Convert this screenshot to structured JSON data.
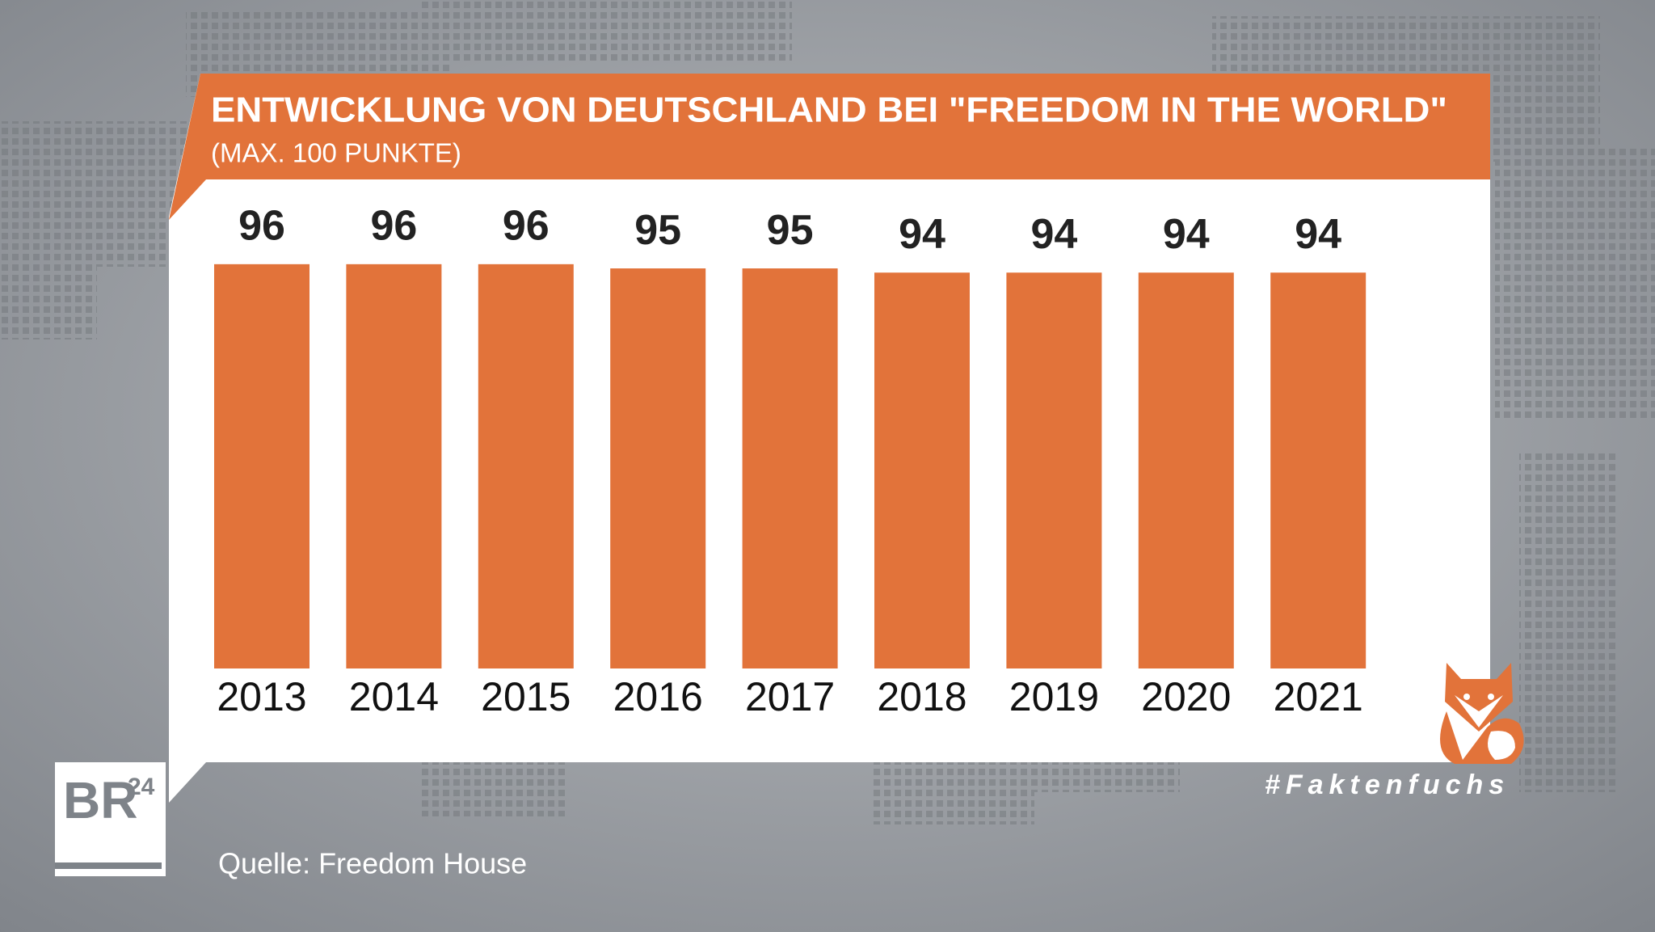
{
  "chart_data": {
    "type": "bar",
    "title": "ENTWICKLUNG VON DEUTSCHLAND BEI \"FREEDOM IN THE WORLD\"",
    "subtitle": "(MAX. 100 PUNKTE)",
    "categories": [
      "2013",
      "2014",
      "2015",
      "2016",
      "2017",
      "2018",
      "2019",
      "2020",
      "2021"
    ],
    "values": [
      96,
      96,
      96,
      95,
      95,
      94,
      94,
      94,
      94
    ],
    "color": "#e2733a",
    "source": "Quelle: Freedom House"
  },
  "logo": {
    "text": "BR",
    "superscript": "24"
  },
  "hashtag": "#Faktenfuchs"
}
